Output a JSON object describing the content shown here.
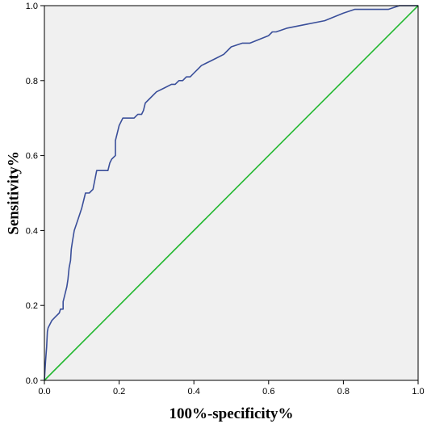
{
  "chart_data": {
    "type": "line",
    "title": "",
    "xlabel": "100%-specificity%",
    "ylabel": "Sensitivity%",
    "xlim": [
      0,
      1
    ],
    "ylim": [
      0,
      1
    ],
    "x_ticks": [
      "0.0",
      "0.2",
      "0.4",
      "0.6",
      "0.8",
      "1.0"
    ],
    "y_ticks": [
      "0.0",
      "0.2",
      "0.4",
      "0.6",
      "0.8",
      "1.0"
    ],
    "grid": false,
    "legend": "none",
    "background_color": "#f0f0f0",
    "series": [
      {
        "color": "#3a4f9a",
        "x": [
          0,
          0.003,
          0.006,
          0.008,
          0.01,
          0.02,
          0.03,
          0.04,
          0.043,
          0.05,
          0.05,
          0.055,
          0.06,
          0.063,
          0.066,
          0.07,
          0.072,
          0.075,
          0.08,
          0.09,
          0.1,
          0.11,
          0.115,
          0.12,
          0.13,
          0.14,
          0.145,
          0.15,
          0.15,
          0.17,
          0.175,
          0.18,
          0.19,
          0.19,
          0.195,
          0.2,
          0.21,
          0.22,
          0.24,
          0.25,
          0.26,
          0.265,
          0.27,
          0.28,
          0.3,
          0.32,
          0.34,
          0.35,
          0.36,
          0.37,
          0.38,
          0.39,
          0.4,
          0.41,
          0.42,
          0.44,
          0.46,
          0.48,
          0.5,
          0.53,
          0.55,
          0.6,
          0.61,
          0.62,
          0.65,
          0.7,
          0.75,
          0.8,
          0.83,
          0.84,
          0.9,
          0.92,
          0.95,
          1.0
        ],
        "y": [
          0,
          0.05,
          0.09,
          0.13,
          0.14,
          0.16,
          0.17,
          0.18,
          0.19,
          0.19,
          0.21,
          0.23,
          0.25,
          0.27,
          0.3,
          0.32,
          0.35,
          0.37,
          0.4,
          0.43,
          0.46,
          0.5,
          0.5,
          0.5,
          0.51,
          0.56,
          0.56,
          0.56,
          0.56,
          0.56,
          0.58,
          0.59,
          0.6,
          0.64,
          0.66,
          0.68,
          0.7,
          0.7,
          0.7,
          0.71,
          0.71,
          0.72,
          0.74,
          0.75,
          0.77,
          0.78,
          0.79,
          0.79,
          0.8,
          0.8,
          0.81,
          0.81,
          0.82,
          0.83,
          0.84,
          0.85,
          0.86,
          0.87,
          0.89,
          0.9,
          0.9,
          0.92,
          0.93,
          0.93,
          0.94,
          0.95,
          0.96,
          0.98,
          0.99,
          0.99,
          0.99,
          0.99,
          1.0,
          1.0
        ]
      },
      {
        "color": "#22b830",
        "x": [
          0,
          1
        ],
        "y": [
          0,
          1
        ]
      }
    ]
  }
}
